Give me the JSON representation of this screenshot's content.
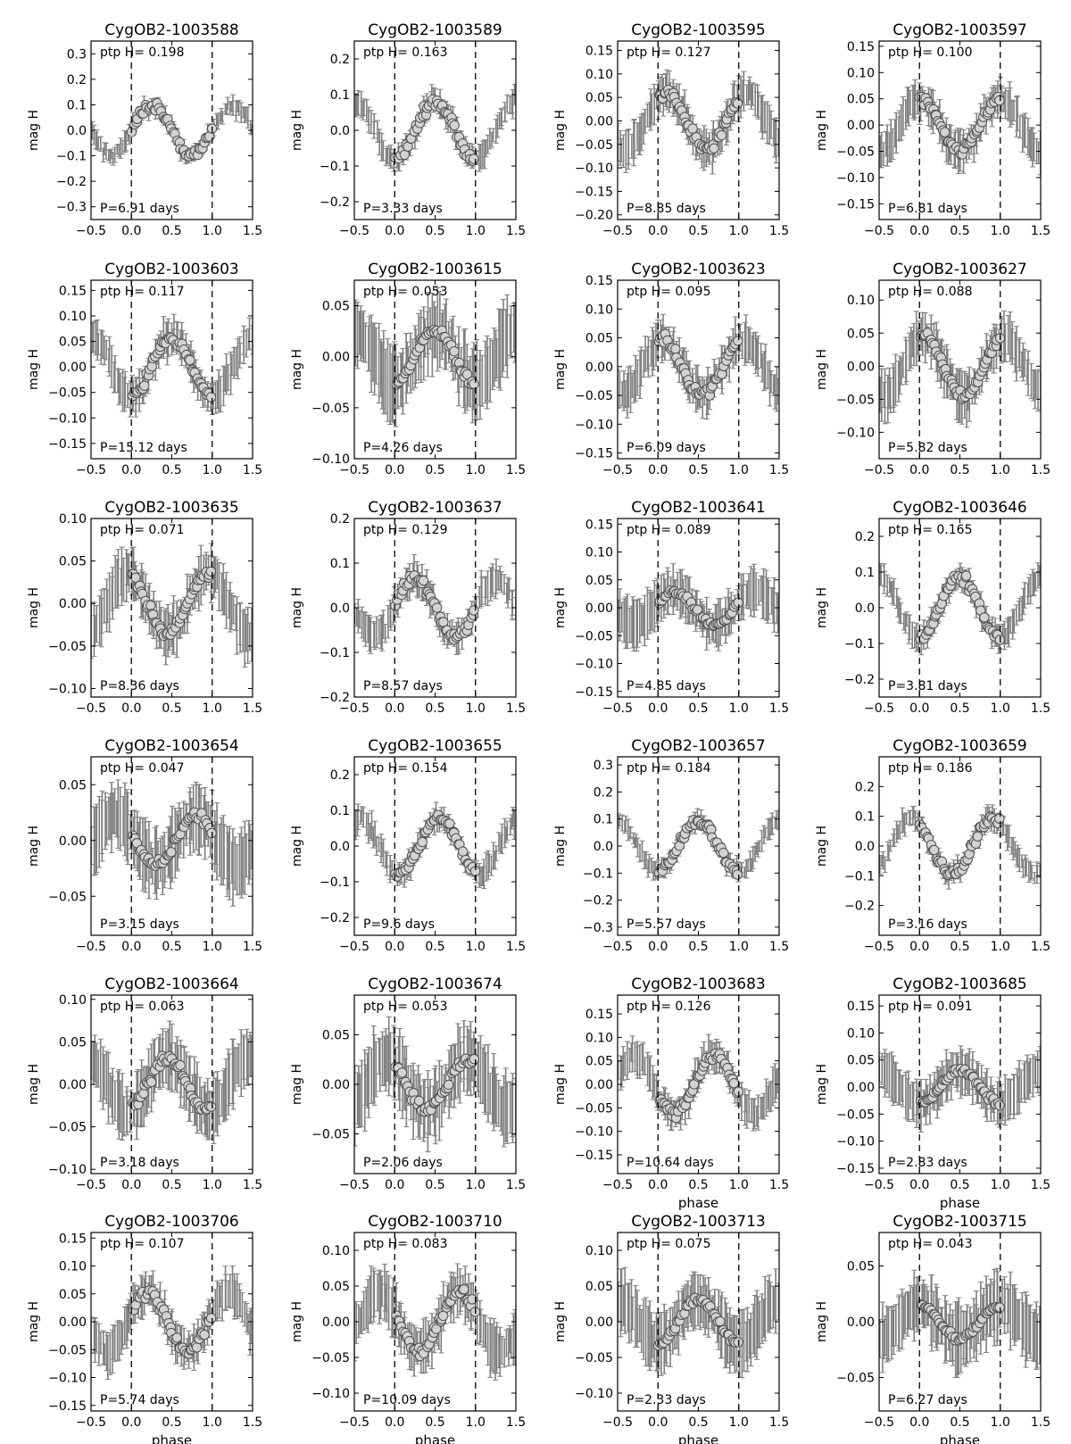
{
  "figure": {
    "colors": {
      "errorbar": "#808080",
      "marker_fill": "#d3d3d3",
      "marker_edge": "#505050",
      "axes": "#000000",
      "text": "#000000"
    },
    "grid": false,
    "xlabel_text": "phase",
    "ylabel_text": "mag H",
    "ptp_prefix": "ptp H=",
    "xticks": [
      -0.5,
      0.0,
      0.5,
      1.0,
      1.5
    ],
    "xtick_labels": [
      "−0.5",
      "0.0",
      "0.5",
      "1.0",
      "1.5"
    ],
    "phase_markers": [
      0.0,
      1.0
    ]
  },
  "chart_data": [
    {
      "type": "scatter",
      "title": "CygOB2-1003588",
      "ptp": "0.198",
      "period": "P=6.91 days",
      "ylabel": "mag H",
      "xlabel": "",
      "xlim": [
        -0.5,
        1.5
      ],
      "ylim": [
        0.35,
        -0.35
      ],
      "yticks": [
        -0.3,
        -0.2,
        -0.1,
        0.0,
        0.1,
        0.2,
        0.3
      ],
      "ytick_labels": [
        "−0.3",
        "−0.2",
        "−0.1",
        "0.0",
        "0.1",
        "0.2",
        "0.3"
      ],
      "shape": "sine",
      "mean": 0.0,
      "amp": 0.099,
      "peak": 0.75,
      "harm": 2,
      "err": 0.03
    },
    {
      "type": "scatter",
      "title": "CygOB2-1003589",
      "ptp": "0.163",
      "period": "P=3.33 days",
      "ylabel": "mag H",
      "xlabel": "",
      "xlim": [
        -0.5,
        1.5
      ],
      "ylim": [
        0.25,
        -0.25
      ],
      "yticks": [
        -0.2,
        -0.1,
        0.0,
        0.1,
        0.2
      ],
      "ytick_labels": [
        "−0.2",
        "−0.1",
        "0.0",
        "0.1",
        "0.2"
      ],
      "shape": "sine",
      "mean": 0.0,
      "amp": 0.08,
      "peak": 0.0,
      "harm": 2,
      "err": 0.03
    },
    {
      "type": "scatter",
      "title": "CygOB2-1003595",
      "ptp": "0.127",
      "period": "P=8.85 days",
      "ylabel": "mag H",
      "xlabel": "",
      "xlim": [
        -0.5,
        1.5
      ],
      "ylim": [
        0.17,
        -0.21
      ],
      "yticks": [
        -0.2,
        -0.15,
        -0.1,
        -0.05,
        0.0,
        0.05,
        0.1,
        0.15
      ],
      "ytick_labels": [
        "−0.20",
        "−0.15",
        "−0.10",
        "−0.05",
        "0.00",
        "0.05",
        "0.10",
        "0.15"
      ],
      "shape": "sine",
      "mean": 0.0,
      "amp": 0.06,
      "peak": 0.6,
      "harm": 1,
      "err": 0.035
    },
    {
      "type": "scatter",
      "title": "CygOB2-1003597",
      "ptp": "0.100",
      "period": "P=6.81 days",
      "ylabel": "mag H",
      "xlabel": "",
      "xlim": [
        -0.5,
        1.5
      ],
      "ylim": [
        0.16,
        -0.18
      ],
      "yticks": [
        -0.15,
        -0.1,
        -0.05,
        0.0,
        0.05,
        0.1,
        0.15
      ],
      "ytick_labels": [
        "−0.15",
        "−0.10",
        "−0.05",
        "0.00",
        "0.05",
        "0.10",
        "0.15"
      ],
      "shape": "sine",
      "mean": 0.0,
      "amp": 0.05,
      "peak": 0.5,
      "harm": 1,
      "err": 0.03
    },
    {
      "type": "scatter",
      "title": "CygOB2-1003603",
      "ptp": "0.117",
      "period": "P=15.12 days",
      "ylabel": "mag H",
      "xlabel": "",
      "xlim": [
        -0.5,
        1.5
      ],
      "ylim": [
        0.17,
        -0.18
      ],
      "yticks": [
        -0.15,
        -0.1,
        -0.05,
        0.0,
        0.05,
        0.1,
        0.15
      ],
      "ytick_labels": [
        "−0.15",
        "−0.10",
        "−0.05",
        "0.00",
        "0.05",
        "0.10",
        "0.15"
      ],
      "shape": "sine",
      "mean": 0.0,
      "amp": 0.058,
      "peak": 0.0,
      "harm": 1,
      "err": 0.03
    },
    {
      "type": "scatter",
      "title": "CygOB2-1003615",
      "ptp": "0.053",
      "period": "P=4.26 days",
      "ylabel": "mag H",
      "xlabel": "",
      "xlim": [
        -0.5,
        1.5
      ],
      "ylim": [
        0.075,
        -0.1
      ],
      "yticks": [
        -0.1,
        -0.05,
        0.0,
        0.05
      ],
      "ytick_labels": [
        "−0.10",
        "−0.05",
        "0.00",
        "0.05"
      ],
      "shape": "sine",
      "mean": 0.0,
      "amp": 0.026,
      "peak": 0.0,
      "harm": 1,
      "err": 0.03
    },
    {
      "type": "scatter",
      "title": "CygOB2-1003623",
      "ptp": "0.095",
      "period": "P=6.09 days",
      "ylabel": "mag H",
      "xlabel": "",
      "xlim": [
        -0.5,
        1.5
      ],
      "ylim": [
        0.15,
        -0.16
      ],
      "yticks": [
        -0.15,
        -0.1,
        -0.05,
        0.0,
        0.05,
        0.1,
        0.15
      ],
      "ytick_labels": [
        "−0.15",
        "−0.10",
        "−0.05",
        "0.00",
        "0.05",
        "0.10",
        "0.15"
      ],
      "shape": "sine",
      "mean": 0.0,
      "amp": 0.047,
      "peak": 0.55,
      "harm": 1,
      "err": 0.03
    },
    {
      "type": "scatter",
      "title": "CygOB2-1003627",
      "ptp": "0.088",
      "period": "P=5.82 days",
      "ylabel": "mag H",
      "xlabel": "",
      "xlim": [
        -0.5,
        1.5
      ],
      "ylim": [
        0.13,
        -0.14
      ],
      "yticks": [
        -0.1,
        -0.05,
        0.0,
        0.05,
        0.1
      ],
      "ytick_labels": [
        "−0.10",
        "−0.05",
        "0.00",
        "0.05",
        "0.10"
      ],
      "shape": "sine",
      "mean": 0.0,
      "amp": 0.044,
      "peak": 0.55,
      "harm": 1,
      "err": 0.03
    },
    {
      "type": "scatter",
      "title": "CygOB2-1003635",
      "ptp": "0.071",
      "period": "P=8.36 days",
      "ylabel": "mag H",
      "xlabel": "",
      "xlim": [
        -0.5,
        1.5
      ],
      "ylim": [
        0.1,
        -0.11
      ],
      "yticks": [
        -0.1,
        -0.05,
        0.0,
        0.05,
        0.1
      ],
      "ytick_labels": [
        "−0.10",
        "−0.05",
        "0.00",
        "0.05",
        "0.10"
      ],
      "shape": "sine",
      "mean": 0.0,
      "amp": 0.035,
      "peak": 0.45,
      "harm": 1,
      "err": 0.025
    },
    {
      "type": "scatter",
      "title": "CygOB2-1003637",
      "ptp": "0.129",
      "period": "P=8.57 days",
      "ylabel": "mag H",
      "xlabel": "",
      "xlim": [
        -0.5,
        1.5
      ],
      "ylim": [
        0.2,
        -0.2
      ],
      "yticks": [
        -0.2,
        -0.1,
        0.0,
        0.1,
        0.2
      ],
      "ytick_labels": [
        "−0.2",
        "−0.1",
        "0.0",
        "0.1",
        "0.2"
      ],
      "shape": "sine",
      "mean": 0.0,
      "amp": 0.064,
      "peak": 0.75,
      "harm": 1,
      "err": 0.03
    },
    {
      "type": "scatter",
      "title": "CygOB2-1003641",
      "ptp": "0.089",
      "period": "P=4.85 days",
      "ylabel": "mag H",
      "xlabel": "",
      "xlim": [
        -0.5,
        1.5
      ],
      "ylim": [
        0.16,
        -0.16
      ],
      "yticks": [
        -0.15,
        -0.1,
        -0.05,
        0.0,
        0.05,
        0.1,
        0.15
      ],
      "ytick_labels": [
        "−0.15",
        "−0.10",
        "−0.05",
        "0.00",
        "0.05",
        "0.10",
        "0.15"
      ],
      "shape": "sine",
      "mean": 0.0,
      "amp": 0.03,
      "peak": 0.7,
      "harm": 1,
      "err": 0.035
    },
    {
      "type": "scatter",
      "title": "CygOB2-1003646",
      "ptp": "0.165",
      "period": "P=3.81 days",
      "ylabel": "mag H",
      "xlabel": "",
      "xlim": [
        -0.5,
        1.5
      ],
      "ylim": [
        0.25,
        -0.25
      ],
      "yticks": [
        -0.2,
        -0.1,
        0.0,
        0.1,
        0.2
      ],
      "ytick_labels": [
        "−0.2",
        "−0.1",
        "0.0",
        "0.1",
        "0.2"
      ],
      "shape": "sine",
      "mean": 0.0,
      "amp": 0.082,
      "peak": 0.0,
      "harm": 1,
      "err": 0.03
    },
    {
      "type": "scatter",
      "title": "CygOB2-1003654",
      "ptp": "0.047",
      "period": "P=3.15 days",
      "ylabel": "mag H",
      "xlabel": "",
      "xlim": [
        -0.5,
        1.5
      ],
      "ylim": [
        0.075,
        -0.085
      ],
      "yticks": [
        -0.05,
        0.0,
        0.05
      ],
      "ytick_labels": [
        "−0.05",
        "0.00",
        "0.05"
      ],
      "shape": "sine",
      "mean": 0.0,
      "amp": 0.022,
      "peak": 0.3,
      "harm": 1,
      "err": 0.025
    },
    {
      "type": "scatter",
      "title": "CygOB2-1003655",
      "ptp": "0.154",
      "period": "P=9.6 days",
      "ylabel": "mag H",
      "xlabel": "",
      "xlim": [
        -0.5,
        1.5
      ],
      "ylim": [
        0.25,
        -0.25
      ],
      "yticks": [
        -0.2,
        -0.1,
        0.0,
        0.1,
        0.2
      ],
      "ytick_labels": [
        "−0.2",
        "−0.1",
        "0.0",
        "0.1",
        "0.2"
      ],
      "shape": "sine",
      "mean": 0.0,
      "amp": 0.077,
      "peak": 0.05,
      "harm": 1,
      "err": 0.03
    },
    {
      "type": "scatter",
      "title": "CygOB2-1003657",
      "ptp": "0.184",
      "period": "P=5.57 days",
      "ylabel": "mag H",
      "xlabel": "",
      "xlim": [
        -0.5,
        1.5
      ],
      "ylim": [
        0.33,
        -0.33
      ],
      "yticks": [
        -0.3,
        -0.2,
        -0.1,
        0.0,
        0.1,
        0.2,
        0.3
      ],
      "ytick_labels": [
        "−0.3",
        "−0.2",
        "−0.1",
        "0.0",
        "0.1",
        "0.2",
        "0.3"
      ],
      "shape": "sine",
      "mean": 0.0,
      "amp": 0.09,
      "peak": 0.0,
      "harm": 1,
      "err": 0.03
    },
    {
      "type": "scatter",
      "title": "CygOB2-1003659",
      "ptp": "0.186",
      "period": "P=3.16 days",
      "ylabel": "mag H",
      "xlabel": "",
      "xlim": [
        -0.5,
        1.5
      ],
      "ylim": [
        0.3,
        -0.3
      ],
      "yticks": [
        -0.2,
        -0.1,
        0.0,
        0.1,
        0.2
      ],
      "ytick_labels": [
        "−0.2",
        "−0.1",
        "0.0",
        "0.1",
        "0.2"
      ],
      "shape": "sine",
      "mean": 0.0,
      "amp": 0.093,
      "peak": 0.4,
      "harm": 2,
      "err": 0.03
    },
    {
      "type": "scatter",
      "title": "CygOB2-1003664",
      "ptp": "0.063",
      "period": "P=3.18 days",
      "ylabel": "mag H",
      "xlabel": "",
      "xlim": [
        -0.5,
        1.5
      ],
      "ylim": [
        0.105,
        -0.105
      ],
      "yticks": [
        -0.1,
        -0.05,
        0.0,
        0.05,
        0.1
      ],
      "ytick_labels": [
        "−0.10",
        "−0.05",
        "0.00",
        "0.05",
        "0.10"
      ],
      "shape": "sine",
      "mean": 0.0,
      "amp": 0.031,
      "peak": 0.95,
      "harm": 1,
      "err": 0.03
    },
    {
      "type": "scatter",
      "title": "CygOB2-1003674",
      "ptp": "0.053",
      "period": "P=2.06 days",
      "ylabel": "mag H",
      "xlabel": "",
      "xlim": [
        -0.5,
        1.5
      ],
      "ylim": [
        0.09,
        -0.09
      ],
      "yticks": [
        -0.05,
        0.0,
        0.05
      ],
      "ytick_labels": [
        "−0.05",
        "0.00",
        "0.05"
      ],
      "shape": "sine",
      "mean": 0.0,
      "amp": 0.026,
      "peak": 0.4,
      "harm": 1,
      "err": 0.03
    },
    {
      "type": "scatter",
      "title": "CygOB2-1003683",
      "ptp": "0.126",
      "period": "P=10.64 days",
      "ylabel": "mag H",
      "xlabel": "phase",
      "xlim": [
        -0.5,
        1.5
      ],
      "ylim": [
        0.19,
        -0.19
      ],
      "yticks": [
        -0.15,
        -0.1,
        -0.05,
        0.0,
        0.05,
        0.1,
        0.15
      ],
      "ytick_labels": [
        "−0.15",
        "−0.10",
        "−0.05",
        "0.00",
        "0.05",
        "0.10",
        "0.15"
      ],
      "shape": "sine",
      "mean": 0.0,
      "amp": 0.062,
      "peak": 0.2,
      "harm": 1,
      "err": 0.03
    },
    {
      "type": "scatter",
      "title": "CygOB2-1003685",
      "ptp": "0.091",
      "period": "P=2.83 days",
      "ylabel": "mag H",
      "xlabel": "phase",
      "xlim": [
        -0.5,
        1.5
      ],
      "ylim": [
        0.17,
        -0.16
      ],
      "yticks": [
        -0.15,
        -0.1,
        -0.05,
        0.0,
        0.05,
        0.1,
        0.15
      ],
      "ytick_labels": [
        "−0.15",
        "−0.10",
        "−0.05",
        "0.00",
        "0.05",
        "0.10",
        "0.15"
      ],
      "shape": "sine",
      "mean": 0.0,
      "amp": 0.03,
      "peak": 0.0,
      "harm": 1,
      "err": 0.035
    },
    {
      "type": "scatter",
      "title": "CygOB2-1003706",
      "ptp": "0.107",
      "period": "P=5.74 days",
      "ylabel": "mag H",
      "xlabel": "phase",
      "xlim": [
        -0.5,
        1.5
      ],
      "ylim": [
        0.16,
        -0.16
      ],
      "yticks": [
        -0.15,
        -0.1,
        -0.05,
        0.0,
        0.05,
        0.1,
        0.15
      ],
      "ytick_labels": [
        "−0.15",
        "−0.10",
        "−0.05",
        "0.00",
        "0.05",
        "0.10",
        "0.15"
      ],
      "shape": "sine",
      "mean": 0.0,
      "amp": 0.052,
      "peak": 0.7,
      "harm": 1,
      "err": 0.03
    },
    {
      "type": "scatter",
      "title": "CygOB2-1003710",
      "ptp": "0.083",
      "period": "P=10.09 days",
      "ylabel": "mag H",
      "xlabel": "phase",
      "xlim": [
        -0.5,
        1.5
      ],
      "ylim": [
        0.125,
        -0.125
      ],
      "yticks": [
        -0.1,
        -0.05,
        0.0,
        0.05,
        0.1
      ],
      "ytick_labels": [
        "−0.10",
        "−0.05",
        "0.00",
        "0.05",
        "0.10"
      ],
      "shape": "sine",
      "mean": 0.0,
      "amp": 0.041,
      "peak": 0.3,
      "harm": 1,
      "err": 0.03
    },
    {
      "type": "scatter",
      "title": "CygOB2-1003713",
      "ptp": "0.075",
      "period": "P=2.33 days",
      "ylabel": "mag H",
      "xlabel": "phase",
      "xlim": [
        -0.5,
        1.5
      ],
      "ylim": [
        0.125,
        -0.125
      ],
      "yticks": [
        -0.1,
        -0.05,
        0.0,
        0.05,
        0.1
      ],
      "ytick_labels": [
        "−0.10",
        "−0.05",
        "0.00",
        "0.05",
        "0.10"
      ],
      "shape": "sine",
      "mean": 0.0,
      "amp": 0.03,
      "peak": 0.0,
      "harm": 1,
      "err": 0.035
    },
    {
      "type": "scatter",
      "title": "CygOB2-1003715",
      "ptp": "0.043",
      "period": "P=6.27 days",
      "ylabel": "mag H",
      "xlabel": "phase",
      "xlim": [
        -0.5,
        1.5
      ],
      "ylim": [
        0.08,
        -0.08
      ],
      "yticks": [
        -0.05,
        0.0,
        0.05
      ],
      "ytick_labels": [
        "−0.05",
        "0.00",
        "0.05"
      ],
      "shape": "sine",
      "mean": 0.0,
      "amp": 0.015,
      "peak": 0.5,
      "harm": 1,
      "err": 0.025
    }
  ]
}
